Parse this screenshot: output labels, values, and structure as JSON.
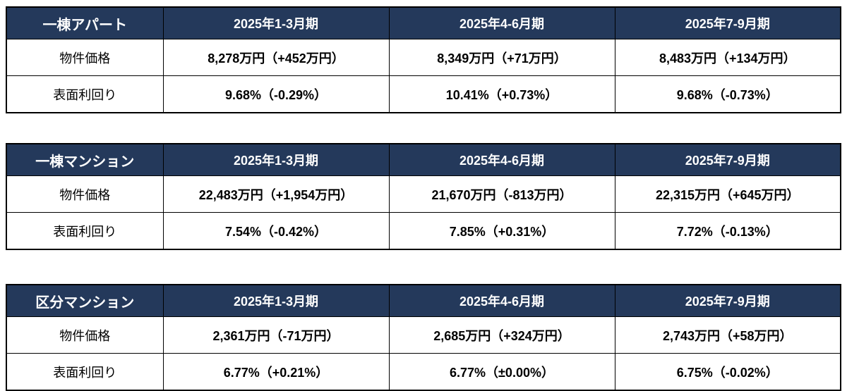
{
  "colors": {
    "header_bg": "#24395B",
    "header_text": "#FFFFFF",
    "body_text": "#000000",
    "border": "#000000",
    "background": "#FFFFFF"
  },
  "chart_data": [
    {
      "type": "table",
      "title": "一棟アパート",
      "columns": [
        "2025年1-3月期",
        "2025年4-6月期",
        "2025年7-9月期"
      ],
      "rows": [
        {
          "label": "物件価格",
          "values": [
            "8,278万円（+452万円）",
            "8,349万円（+71万円）",
            "8,483万円（+134万円）"
          ]
        },
        {
          "label": "表面利回り",
          "values": [
            "9.68%（-0.29%）",
            "10.41%（+0.73%）",
            "9.68%（-0.73%）"
          ]
        }
      ]
    },
    {
      "type": "table",
      "title": "一棟マンション",
      "columns": [
        "2025年1-3月期",
        "2025年4-6月期",
        "2025年7-9月期"
      ],
      "rows": [
        {
          "label": "物件価格",
          "values": [
            "22,483万円（+1,954万円）",
            "21,670万円（-813万円）",
            "22,315万円（+645万円）"
          ]
        },
        {
          "label": "表面利回り",
          "values": [
            "7.54%（-0.42%）",
            "7.85%（+0.31%）",
            "7.72%（-0.13%）"
          ]
        }
      ]
    },
    {
      "type": "table",
      "title": "区分マンション",
      "columns": [
        "2025年1-3月期",
        "2025年4-6月期",
        "2025年7-9月期"
      ],
      "rows": [
        {
          "label": "物件価格",
          "values": [
            "2,361万円（-71万円）",
            "2,685万円（+324万円）",
            "2,743万円（+58万円）"
          ]
        },
        {
          "label": "表面利回り",
          "values": [
            "6.77%（+0.21%）",
            "6.77%（±0.00%）",
            "6.75%（-0.02%）"
          ]
        }
      ]
    }
  ]
}
